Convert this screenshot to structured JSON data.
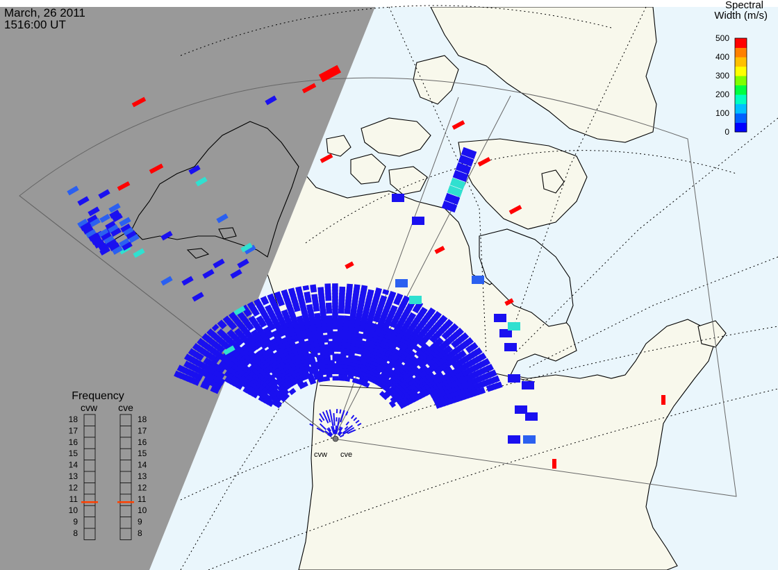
{
  "header": {
    "date": "March, 26 2011",
    "time": "1516:00 UT"
  },
  "colorbar": {
    "title_line1": "Spectral",
    "title_line2": "Width (m/s)",
    "ticks": [
      "500",
      "400",
      "300",
      "200",
      "100",
      "0"
    ],
    "colors": [
      "#0000ff",
      "#0060ff",
      "#00c0ff",
      "#00ffc0",
      "#00ff40",
      "#80ff00",
      "#ffff00",
      "#ffc000",
      "#ff8000",
      "#ff0000"
    ]
  },
  "frequency": {
    "title": "Frequency",
    "radars": [
      "cvw",
      "cve"
    ],
    "levels": [
      "18",
      "17",
      "16",
      "15",
      "14",
      "13",
      "12",
      "11",
      "10",
      "9",
      "8"
    ],
    "cvw_mhz": 10.8,
    "cve_mhz": 10.8,
    "marker_color": "#ff4000"
  },
  "radar_sites": {
    "west_label": "cvw",
    "east_label": "cve"
  },
  "colors": {
    "night": "#999999",
    "ocean": "#eaf6fc",
    "land": "#f8f8ec",
    "echo_low": "#1a10f0",
    "echo_mid": "#2b60f0",
    "echo_teal": "#30e0d0",
    "echo_high": "#ff0000"
  }
}
